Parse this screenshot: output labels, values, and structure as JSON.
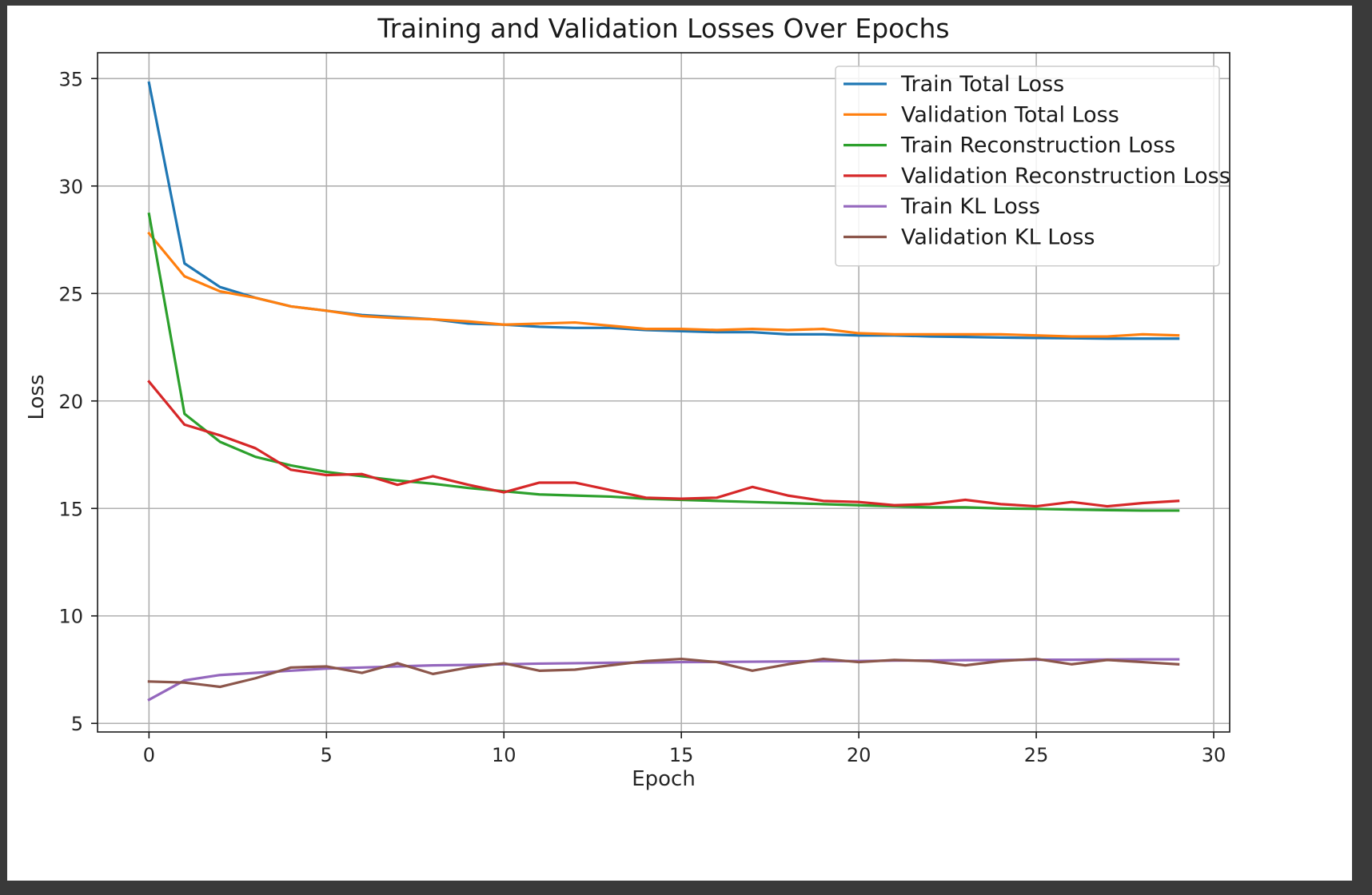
{
  "chart_data": {
    "type": "line",
    "title": "Training and Validation Losses Over Epochs",
    "xlabel": "Epoch",
    "ylabel": "Loss",
    "xlim": [
      -1.45,
      30.45
    ],
    "ylim": [
      4.6,
      36.2
    ],
    "xticks": [
      0,
      5,
      10,
      15,
      20,
      25,
      30
    ],
    "yticks": [
      5,
      10,
      15,
      20,
      25,
      30,
      35
    ],
    "grid": true,
    "legend_position": "top-right",
    "x": [
      0,
      1,
      2,
      3,
      4,
      5,
      6,
      7,
      8,
      9,
      10,
      11,
      12,
      13,
      14,
      15,
      16,
      17,
      18,
      19,
      20,
      21,
      22,
      23,
      24,
      25,
      26,
      27,
      28,
      29
    ],
    "series": [
      {
        "name": "Train Total Loss",
        "color": "#1f77b4",
        "values": [
          34.8,
          26.4,
          25.3,
          24.8,
          24.4,
          24.2,
          24.0,
          23.9,
          23.8,
          23.6,
          23.55,
          23.45,
          23.4,
          23.4,
          23.3,
          23.25,
          23.2,
          23.2,
          23.1,
          23.1,
          23.05,
          23.05,
          23.0,
          22.98,
          22.95,
          22.93,
          22.92,
          22.9,
          22.9,
          22.9
        ]
      },
      {
        "name": "Validation Total Loss",
        "color": "#ff7f0e",
        "values": [
          27.8,
          25.8,
          25.1,
          24.8,
          24.4,
          24.2,
          23.95,
          23.85,
          23.8,
          23.7,
          23.55,
          23.6,
          23.65,
          23.5,
          23.35,
          23.35,
          23.3,
          23.35,
          23.3,
          23.35,
          23.15,
          23.1,
          23.1,
          23.1,
          23.1,
          23.05,
          23.0,
          23.0,
          23.1,
          23.05
        ]
      },
      {
        "name": "Train Reconstruction Loss",
        "color": "#2ca02c",
        "values": [
          28.7,
          19.4,
          18.1,
          17.4,
          17.0,
          16.7,
          16.5,
          16.3,
          16.15,
          15.95,
          15.8,
          15.65,
          15.6,
          15.55,
          15.45,
          15.4,
          15.35,
          15.3,
          15.25,
          15.2,
          15.15,
          15.1,
          15.05,
          15.05,
          15.0,
          14.98,
          14.95,
          14.92,
          14.9,
          14.9
        ]
      },
      {
        "name": "Validation Reconstruction Loss",
        "color": "#d62728",
        "values": [
          20.9,
          18.9,
          18.4,
          17.8,
          16.8,
          16.55,
          16.6,
          16.1,
          16.5,
          16.1,
          15.75,
          16.2,
          16.2,
          15.85,
          15.5,
          15.45,
          15.5,
          16.0,
          15.6,
          15.35,
          15.3,
          15.15,
          15.2,
          15.4,
          15.2,
          15.1,
          15.3,
          15.1,
          15.25,
          15.35
        ]
      },
      {
        "name": "Train KL Loss",
        "color": "#9467bd",
        "values": [
          6.1,
          7.0,
          7.25,
          7.35,
          7.45,
          7.55,
          7.6,
          7.65,
          7.7,
          7.72,
          7.75,
          7.78,
          7.8,
          7.82,
          7.83,
          7.85,
          7.86,
          7.87,
          7.88,
          7.9,
          7.9,
          7.92,
          7.93,
          7.94,
          7.95,
          7.96,
          7.96,
          7.97,
          7.98,
          7.98
        ]
      },
      {
        "name": "Validation KL Loss",
        "color": "#8c564b",
        "values": [
          6.95,
          6.9,
          6.7,
          7.1,
          7.6,
          7.65,
          7.35,
          7.8,
          7.3,
          7.6,
          7.8,
          7.45,
          7.5,
          7.7,
          7.9,
          8.0,
          7.85,
          7.45,
          7.75,
          8.0,
          7.85,
          7.95,
          7.9,
          7.7,
          7.9,
          8.0,
          7.75,
          7.95,
          7.85,
          7.75
        ]
      }
    ]
  }
}
